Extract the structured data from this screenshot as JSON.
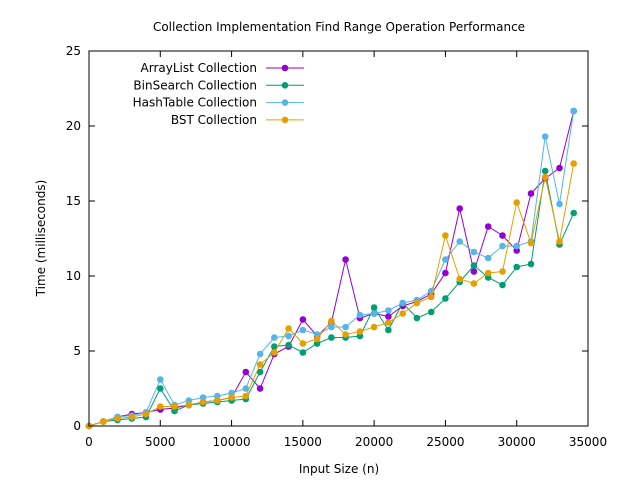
{
  "chart_data": {
    "type": "line",
    "title": "Collection Implementation Find Range Operation Performance",
    "xlabel": "Input Size (n)",
    "ylabel": "Time (milliseconds)",
    "xlim": [
      0,
      35000
    ],
    "ylim": [
      0,
      25
    ],
    "xticks": [
      0,
      5000,
      10000,
      15000,
      20000,
      25000,
      30000,
      35000
    ],
    "yticks": [
      0,
      5,
      10,
      15,
      20,
      25
    ],
    "grid": false,
    "legend_position": "top-left",
    "x": [
      0,
      1000,
      2000,
      3000,
      4000,
      5000,
      6000,
      7000,
      8000,
      9000,
      10000,
      11000,
      12000,
      13000,
      14000,
      15000,
      16000,
      17000,
      18000,
      19000,
      20000,
      21000,
      22000,
      23000,
      24000,
      25000,
      26000,
      27000,
      28000,
      29000,
      30000,
      31000,
      32000,
      33000,
      34000
    ],
    "series": [
      {
        "name": "ArrayList Collection",
        "color": "#9400d3",
        "values": [
          0.0,
          0.3,
          0.6,
          0.8,
          0.9,
          1.1,
          1.2,
          1.4,
          1.6,
          1.7,
          1.9,
          3.6,
          2.5,
          4.8,
          5.3,
          7.1,
          6.0,
          6.9,
          11.1,
          7.2,
          7.5,
          7.3,
          8.0,
          8.3,
          8.8,
          10.2,
          14.5,
          10.3,
          13.3,
          12.7,
          11.7,
          15.5,
          16.5,
          17.2,
          21.0
        ]
      },
      {
        "name": "BinSearch Collection",
        "color": "#009e73",
        "values": [
          0.0,
          0.3,
          0.4,
          0.5,
          0.6,
          2.5,
          1.0,
          1.4,
          1.5,
          1.6,
          1.7,
          1.8,
          3.6,
          5.3,
          5.4,
          4.9,
          5.5,
          5.9,
          5.9,
          6.0,
          7.9,
          6.4,
          8.2,
          7.2,
          7.6,
          8.5,
          9.6,
          10.7,
          9.9,
          9.4,
          10.6,
          10.8,
          17.0,
          12.1,
          14.2
        ]
      },
      {
        "name": "HashTable Collection",
        "color": "#56b4e9",
        "values": [
          0.0,
          0.3,
          0.6,
          0.7,
          0.9,
          3.1,
          1.4,
          1.7,
          1.9,
          2.0,
          2.2,
          2.5,
          4.8,
          5.9,
          6.0,
          6.4,
          6.1,
          6.6,
          6.6,
          7.4,
          7.5,
          7.7,
          8.2,
          8.4,
          9.0,
          11.1,
          12.3,
          11.6,
          11.2,
          12.0,
          12.0,
          12.3,
          19.3,
          14.8,
          21.0
        ]
      },
      {
        "name": "BST Collection",
        "color": "#e69f00",
        "values": [
          0.0,
          0.3,
          0.5,
          0.6,
          0.8,
          1.3,
          1.3,
          1.4,
          1.6,
          1.7,
          1.9,
          2.0,
          4.1,
          4.9,
          6.5,
          5.5,
          5.8,
          7.0,
          6.1,
          6.3,
          6.6,
          6.9,
          7.5,
          8.2,
          8.6,
          12.7,
          9.8,
          9.5,
          10.2,
          10.3,
          14.9,
          12.2,
          16.6,
          12.3,
          17.5
        ]
      }
    ]
  }
}
